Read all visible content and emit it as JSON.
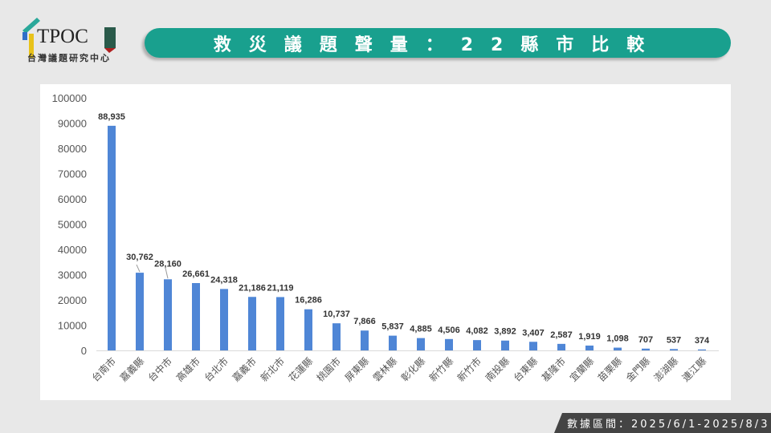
{
  "logo": {
    "text": "TPOC",
    "subtitle": "台灣議題研究中心"
  },
  "title": "救災議題聲量：22縣市比較",
  "footer": "數據區間：2025/6/1-2025/8/3",
  "colors": {
    "bar": "#4f86d6",
    "banner": "#19a08e"
  },
  "chart_data": {
    "type": "bar",
    "title": "救災議題聲量：22縣市比較",
    "categories": [
      "台南市",
      "嘉義縣",
      "台中市",
      "高雄市",
      "台北市",
      "嘉義市",
      "新北市",
      "花蓮縣",
      "桃園市",
      "屏東縣",
      "雲林縣",
      "彰化縣",
      "新竹縣",
      "新竹市",
      "南投縣",
      "台東縣",
      "基隆市",
      "宜蘭縣",
      "苗栗縣",
      "金門縣",
      "澎湖縣",
      "連江縣"
    ],
    "values": [
      88935,
      30762,
      28160,
      26661,
      24318,
      21186,
      21119,
      16286,
      10737,
      7866,
      5837,
      4885,
      4506,
      4082,
      3892,
      3407,
      2587,
      1919,
      1098,
      707,
      537,
      374
    ],
    "labels": [
      "88,935",
      "30,762",
      "28,160",
      "26,661",
      "24,318",
      "21,186",
      "21,119",
      "16,286",
      "10,737",
      "7,866",
      "5,837",
      "4,885",
      "4,506",
      "4,082",
      "3,892",
      "3,407",
      "2,587",
      "1,919",
      "1,098",
      "707",
      "537",
      "374"
    ],
    "yticks": [
      "0",
      "10000",
      "20000",
      "30000",
      "40000",
      "50000",
      "60000",
      "70000",
      "80000",
      "90000",
      "100000"
    ],
    "ylim": [
      0,
      100000
    ],
    "xlabel": "",
    "ylabel": "",
    "grid": false,
    "legend": "none"
  }
}
